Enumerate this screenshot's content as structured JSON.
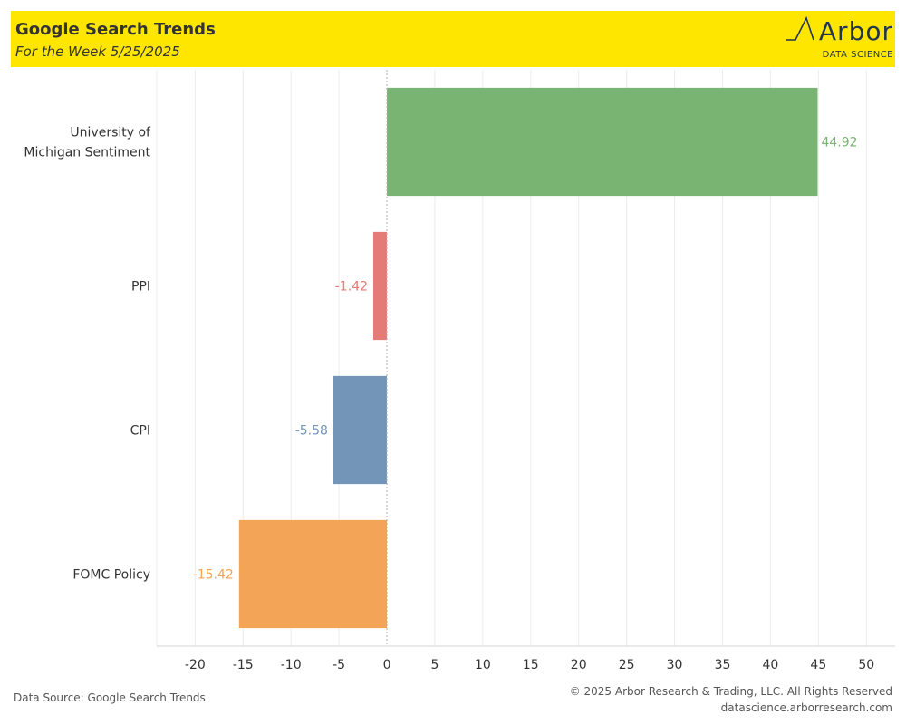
{
  "header": {
    "title": "Google Search Trends",
    "subtitle": "For the Week 5/25/2025",
    "logo_word": "Arbor",
    "logo_sub": "DATA SCIENCE"
  },
  "footer": {
    "source": "Data Source: Google Search Trends",
    "copyright": "© 2025 Arbor Research & Trading, LLC. All Rights Reserved",
    "website": "datascience.arborresearch.com"
  },
  "colors": {
    "header_bg": "#ffe600",
    "logo": "#1f3550"
  },
  "chart_data": {
    "type": "bar",
    "orientation": "horizontal",
    "categories": [
      "University of Michigan Sentiment",
      "PPI",
      "CPI",
      "FOMC Policy"
    ],
    "category_label_lines": [
      [
        "University of",
        "Michigan Sentiment"
      ],
      [
        "PPI"
      ],
      [
        "CPI"
      ],
      [
        "FOMC Policy"
      ]
    ],
    "values": [
      44.92,
      -1.42,
      -5.58,
      -15.42
    ],
    "value_labels": [
      "44.92",
      "-1.42",
      "-5.58",
      "-15.42"
    ],
    "bar_colors": [
      "#79b472",
      "#e57a77",
      "#7295b8",
      "#f4a456"
    ],
    "xlim": [
      -24,
      53
    ],
    "x_ticks": [
      -20,
      -15,
      -10,
      -5,
      0,
      5,
      10,
      15,
      20,
      25,
      30,
      35,
      40,
      45,
      50
    ],
    "x_tick_labels": [
      "-20",
      "-15",
      "-10",
      "-5",
      "0",
      "5",
      "10",
      "15",
      "20",
      "25",
      "30",
      "35",
      "40",
      "45",
      "50"
    ],
    "grid": true,
    "xlabel": "",
    "ylabel": ""
  }
}
